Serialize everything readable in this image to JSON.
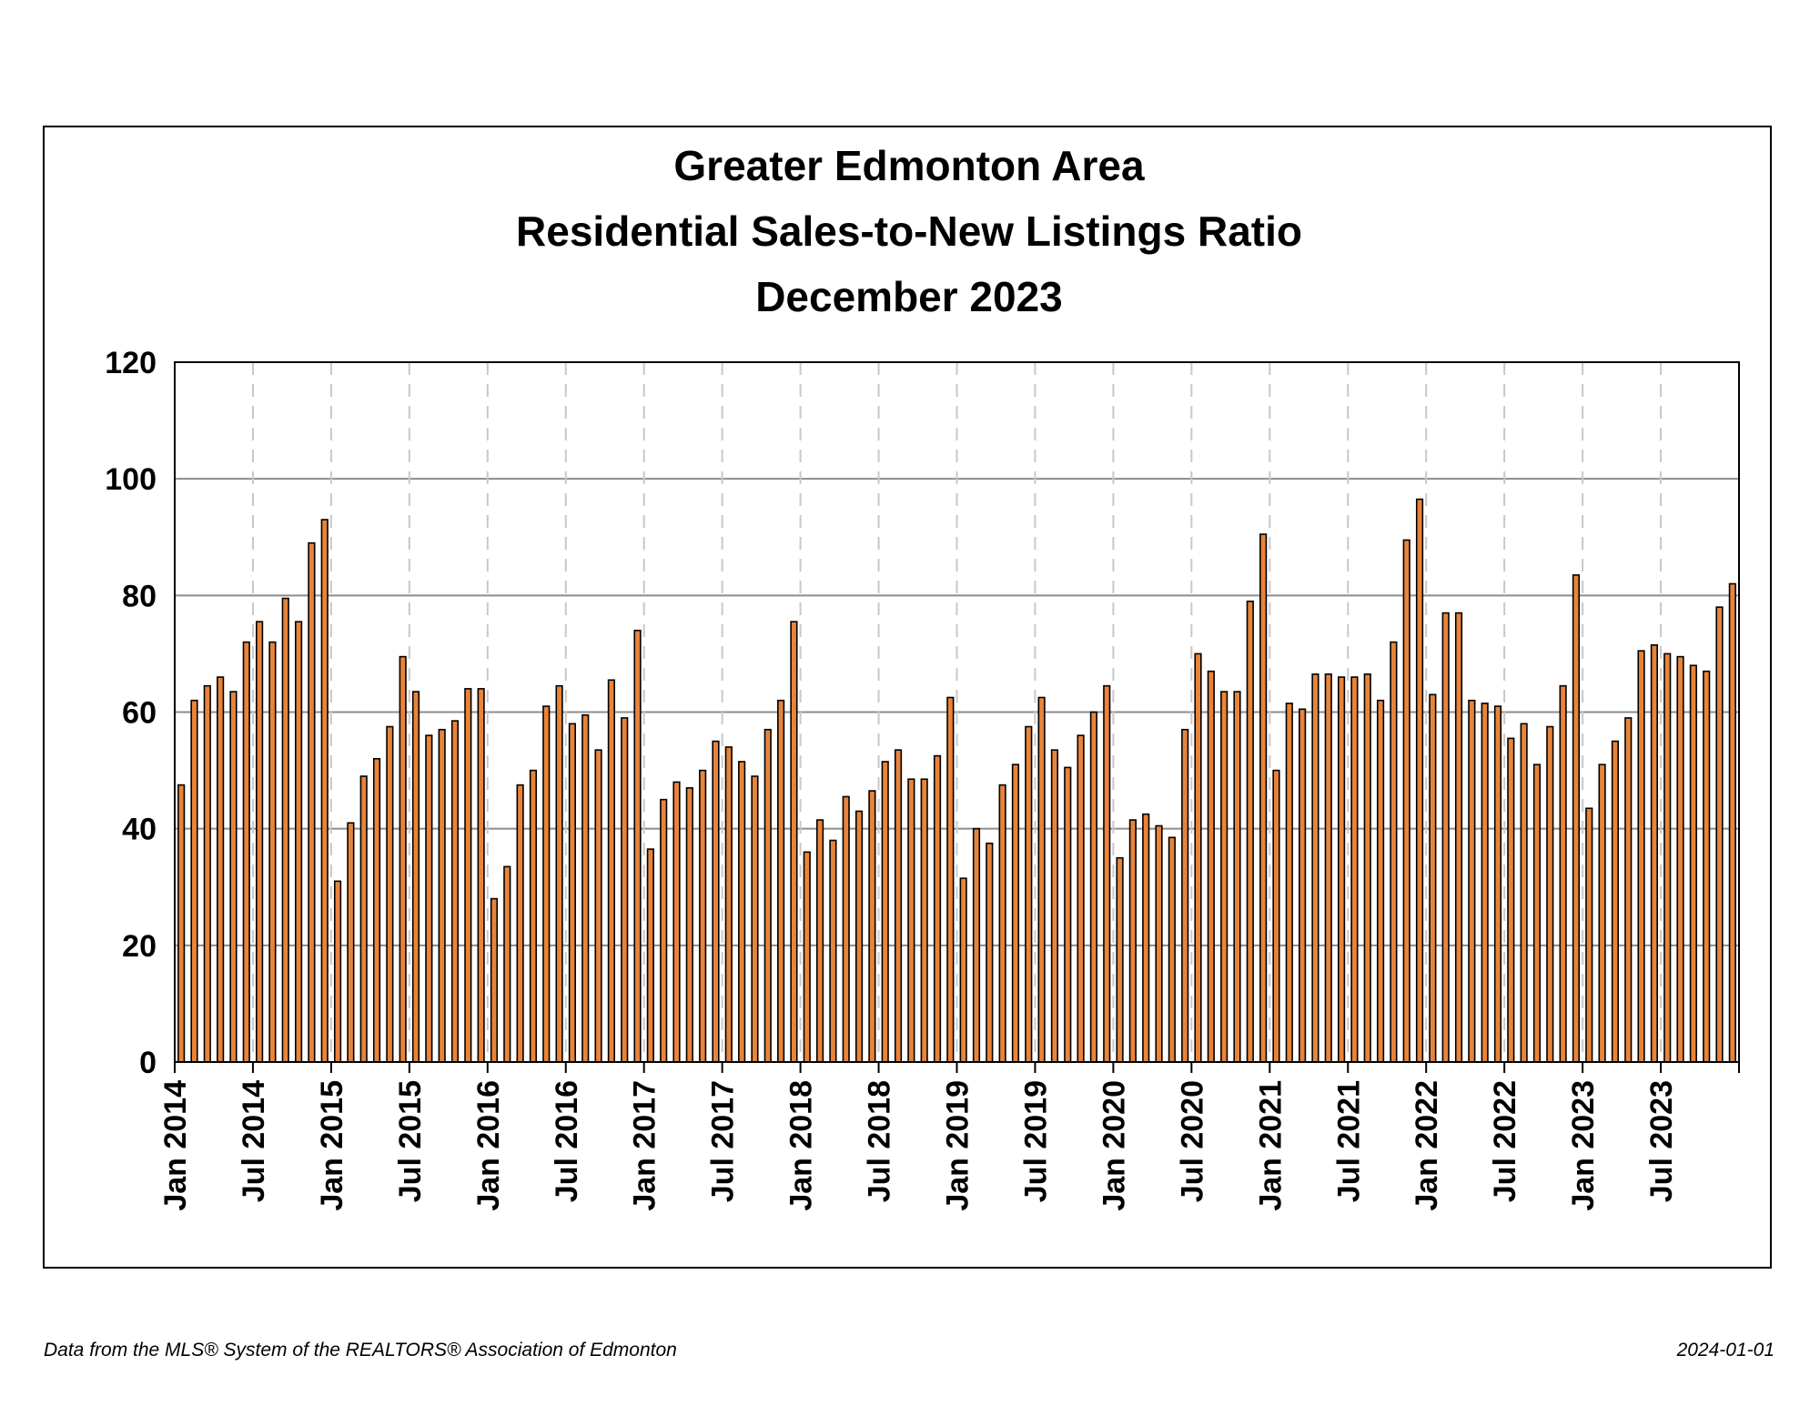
{
  "footer": {
    "source": "Data from the MLS® System of the REALTORS® Association of Edmonton",
    "date": "2024-01-01"
  },
  "chart_data": {
    "type": "bar",
    "title": [
      "Greater Edmonton Area",
      "Residential Sales-to-New Listings Ratio",
      "December 2023"
    ],
    "xlabel": "",
    "ylabel": "",
    "ylim": [
      0,
      120
    ],
    "yticks": [
      0,
      20,
      40,
      60,
      80,
      100,
      120
    ],
    "grid": "horizontal solid lines; vertical dashed lines at Jan and Jul",
    "legend": "none",
    "colors": {
      "bar_fill": "#E8843A",
      "bar_edge": "#000000",
      "hgrid": "#8c8c8c",
      "vgrid": "#c8c8c8"
    },
    "x_start": "Jan 2014",
    "x_end": "Dec 2023",
    "x_tick_labels": [
      "Jan 2014",
      "Jul 2014",
      "Jan 2015",
      "Jul 2015",
      "Jan 2016",
      "Jul 2016",
      "Jan 2017",
      "Jul 2017",
      "Jan 2018",
      "Jul 2018",
      "Jan 2019",
      "Jul 2019",
      "Jan 2020",
      "Jul 2020",
      "Jan 2021",
      "Jul 2021",
      "Jan 2022",
      "Jul 2022",
      "Jan 2023",
      "Jul 2023"
    ],
    "values": [
      47.5,
      62,
      64.5,
      66,
      63.5,
      72,
      75.5,
      72,
      79.5,
      75.5,
      89,
      93,
      31,
      41,
      49,
      52,
      57.5,
      69.5,
      63.5,
      56,
      57,
      58.5,
      64,
      64,
      28,
      33.5,
      47.5,
      50,
      61,
      64.5,
      58,
      59.5,
      53.5,
      65.5,
      59,
      74,
      36.5,
      45,
      48,
      47,
      50,
      55,
      54,
      51.5,
      49,
      57,
      62,
      75.5,
      36,
      41.5,
      38,
      45.5,
      43,
      46.5,
      51.5,
      53.5,
      48.5,
      48.5,
      52.5,
      62.5,
      31.5,
      40,
      37.5,
      47.5,
      51,
      57.5,
      62.5,
      53.5,
      50.5,
      56,
      60,
      64.5,
      35,
      41.5,
      42.5,
      40.5,
      38.5,
      57,
      70,
      67,
      63.5,
      63.5,
      79,
      90.5,
      50,
      61.5,
      60.5,
      66.5,
      66.5,
      66,
      66,
      66.5,
      62,
      72,
      89.5,
      96.5,
      63,
      77,
      77,
      62,
      61.5,
      61,
      55.5,
      58,
      51,
      57.5,
      64.5,
      83.5,
      43.5,
      51,
      55,
      59,
      70.5,
      71.5,
      70,
      69.5,
      68,
      67,
      78,
      82
    ]
  }
}
